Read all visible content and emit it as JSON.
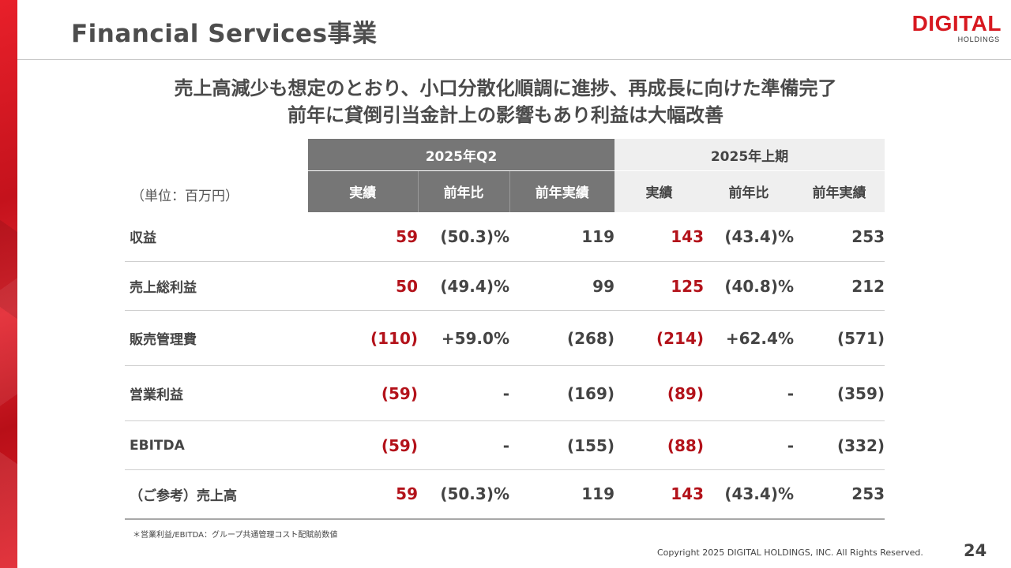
{
  "header": {
    "title": "Financial Services事業",
    "logo_main": "DIGITAL",
    "logo_sub": "HOLDINGS"
  },
  "headline": {
    "line1": "売上高減少も想定のとおり、小口分散化順調に進捗、再成長に向けた準備完了",
    "line2": "前年に貸倒引当金計上の影響もあり利益は大幅改善"
  },
  "table": {
    "unit": "（単位：百万円）",
    "group1": "2025年Q2",
    "group2": "2025年上期",
    "columns": [
      "実績",
      "前年比",
      "前年実績",
      "実績",
      "前年比",
      "前年実績"
    ],
    "rows": [
      {
        "label": "収益",
        "q2_actual": "59",
        "q2_yoy": "(50.3)%",
        "q2_prev": "119",
        "h1_actual": "143",
        "h1_yoy": "(43.4)%",
        "h1_prev": "253"
      },
      {
        "label": "売上総利益",
        "q2_actual": "50",
        "q2_yoy": "(49.4)%",
        "q2_prev": "99",
        "h1_actual": "125",
        "h1_yoy": "(40.8)%",
        "h1_prev": "212"
      },
      {
        "label": "販売管理費",
        "q2_actual": "(110)",
        "q2_yoy": "+59.0%",
        "q2_prev": "(268)",
        "h1_actual": "(214)",
        "h1_yoy": "+62.4%",
        "h1_prev": "(571)"
      },
      {
        "label": "営業利益",
        "q2_actual": "(59)",
        "q2_yoy": "-",
        "q2_prev": "(169)",
        "h1_actual": "(89)",
        "h1_yoy": "-",
        "h1_prev": "(359)"
      },
      {
        "label": "EBITDA",
        "q2_actual": "(59)",
        "q2_yoy": "-",
        "q2_prev": "(155)",
        "h1_actual": "(88)",
        "h1_yoy": "-",
        "h1_prev": "(332)"
      },
      {
        "label": "（ご参考）売上高",
        "q2_actual": "59",
        "q2_yoy": "(50.3)%",
        "q2_prev": "119",
        "h1_actual": "143",
        "h1_yoy": "(43.4)%",
        "h1_prev": "253"
      }
    ]
  },
  "footer": {
    "note": "＊営業利益/EBITDA：グループ共通管理コスト配賦前数値",
    "copyright": "Copyright 2025 DIGITAL HOLDINGS, INC. All Rights Reserved.",
    "page": "24"
  },
  "colors": {
    "accent_red": "#b3121a",
    "header_gray": "#767676",
    "header_light": "#efefef",
    "brand_red": "#d71920"
  }
}
